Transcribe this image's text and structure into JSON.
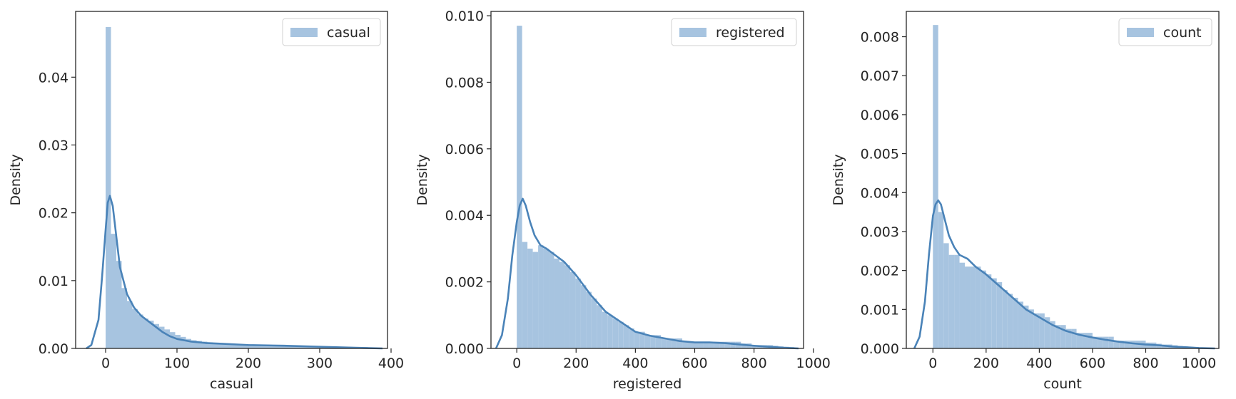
{
  "colors": {
    "bar_fill": "#a7c4e0",
    "kde_line": "#4a83b8",
    "axes": "#262626",
    "legend_border": "#d9d9d9"
  },
  "chart_data": [
    {
      "type": "bar",
      "title": "",
      "xlabel": "casual",
      "ylabel": "Density",
      "xlim": [
        -42,
        395
      ],
      "ylim": [
        0,
        0.0497
      ],
      "xticks": [
        0,
        100,
        200,
        300,
        400
      ],
      "xtick_labels": [
        "0",
        "100",
        "200",
        "300",
        "400"
      ],
      "yticks": [
        0.0,
        0.01,
        0.02,
        0.03,
        0.04
      ],
      "ytick_labels": [
        "0.00",
        "0.01",
        "0.02",
        "0.03",
        "0.04"
      ],
      "grid": false,
      "legend_placement": "top-right",
      "series": [
        {
          "name": "casual",
          "kind": "histogram",
          "bin_edges": [
            0,
            7.5,
            15,
            22.5,
            30,
            37.5,
            45,
            52.5,
            60,
            67.5,
            75,
            82.5,
            90,
            97.5,
            105,
            112.5,
            120,
            127.5,
            135,
            142.5,
            150,
            157.5,
            165,
            172.5,
            180,
            187.5,
            195,
            202.5,
            210,
            217.5,
            225,
            232.5,
            240,
            247.5,
            255,
            262.5,
            270,
            277.5,
            285,
            292.5,
            300,
            307.5,
            315,
            322.5,
            330,
            337.5,
            345,
            352.5,
            360,
            367.5
          ],
          "values": [
            0.0474,
            0.0169,
            0.0129,
            0.0089,
            0.007,
            0.0058,
            0.005,
            0.0044,
            0.0041,
            0.0036,
            0.0032,
            0.0028,
            0.0024,
            0.002,
            0.0017,
            0.0014,
            0.0012,
            0.0011,
            0.001,
            0.0009,
            0.0008,
            0.0008,
            0.0007,
            0.0007,
            0.0006,
            0.0006,
            0.0006,
            0.0005,
            0.0005,
            0.0005,
            0.0005,
            0.0005,
            0.0004,
            0.0004,
            0.0004,
            0.0004,
            0.0004,
            0.0003,
            0.0003,
            0.0003,
            0.0003,
            0.0003,
            0.0003,
            0.0002,
            0.0002,
            0.0002,
            0.0002,
            0.0002,
            0.0002
          ]
        },
        {
          "name": "",
          "kind": "kde",
          "x": [
            -27,
            -20,
            -10,
            -5,
            0,
            3,
            6,
            10,
            15,
            20,
            30,
            40,
            50,
            60,
            70,
            80,
            90,
            100,
            120,
            140,
            160,
            200,
            250,
            300,
            350,
            388
          ],
          "y": [
            0,
            0.0005,
            0.0042,
            0.0105,
            0.0175,
            0.0215,
            0.0225,
            0.021,
            0.0165,
            0.012,
            0.008,
            0.006,
            0.0048,
            0.004,
            0.0032,
            0.0024,
            0.0018,
            0.0014,
            0.001,
            0.0008,
            0.0007,
            0.0005,
            0.0004,
            0.00025,
            0.0001,
            0
          ]
        }
      ]
    },
    {
      "type": "bar",
      "title": "",
      "xlabel": "registered",
      "ylabel": "Density",
      "xlim": [
        -87,
        967
      ],
      "ylim": [
        0,
        0.01013
      ],
      "xticks": [
        0,
        200,
        400,
        600,
        800,
        1000
      ],
      "xtick_labels": [
        "0",
        "200",
        "400",
        "600",
        "800",
        "1000"
      ],
      "yticks": [
        0.0,
        0.002,
        0.004,
        0.006,
        0.008,
        0.01
      ],
      "ytick_labels": [
        "0.000",
        "0.002",
        "0.004",
        "0.006",
        "0.008",
        "0.010"
      ],
      "grid": false,
      "legend_placement": "top-right",
      "series": [
        {
          "name": "registered",
          "kind": "histogram",
          "bin_edges": [
            0,
            18,
            36,
            54,
            72,
            90,
            108,
            126,
            144,
            162,
            180,
            198,
            216,
            234,
            252,
            270,
            288,
            306,
            324,
            342,
            360,
            378,
            396,
            414,
            432,
            450,
            468,
            486,
            504,
            522,
            540,
            558,
            576,
            594,
            612,
            630,
            648,
            666,
            684,
            702,
            720,
            738,
            756,
            774,
            792,
            810,
            828,
            846,
            864,
            882,
            900,
            918,
            936
          ],
          "values": [
            0.0097,
            0.0032,
            0.003,
            0.0029,
            0.0031,
            0.003,
            0.0029,
            0.0027,
            0.0026,
            0.0025,
            0.0023,
            0.0021,
            0.0019,
            0.0017,
            0.0015,
            0.0013,
            0.0011,
            0.001,
            0.0009,
            0.0008,
            0.0007,
            0.0006,
            0.0005,
            0.0005,
            0.0004,
            0.0004,
            0.0004,
            0.0003,
            0.0003,
            0.0003,
            0.0003,
            0.0002,
            0.0002,
            0.0002,
            0.0002,
            0.0002,
            0.0002,
            0.0002,
            0.0002,
            0.0002,
            0.0002,
            0.0002,
            0.00015,
            0.00015,
            0.0001,
            0.0001,
            0.0001,
            0.0001,
            8e-05,
            6e-05,
            5e-05,
            4e-05
          ]
        },
        {
          "name": "",
          "kind": "kde",
          "x": [
            -70,
            -50,
            -30,
            -15,
            0,
            10,
            20,
            30,
            45,
            60,
            80,
            100,
            130,
            160,
            200,
            250,
            300,
            350,
            400,
            450,
            500,
            550,
            600,
            650,
            700,
            750,
            800,
            850,
            900,
            950
          ],
          "y": [
            0,
            0.0004,
            0.0015,
            0.0028,
            0.0038,
            0.0043,
            0.0045,
            0.0043,
            0.0038,
            0.0034,
            0.0031,
            0.003,
            0.0028,
            0.0026,
            0.0022,
            0.0016,
            0.0011,
            0.0008,
            0.0005,
            0.00038,
            0.0003,
            0.00022,
            0.00018,
            0.00018,
            0.00016,
            0.00012,
            8e-05,
            5e-05,
            2e-05,
            0
          ]
        }
      ]
    },
    {
      "type": "bar",
      "title": "",
      "xlabel": "count",
      "ylabel": "Density",
      "xlim": [
        -100,
        1075
      ],
      "ylim": [
        0,
        0.00865
      ],
      "xticks": [
        0,
        200,
        400,
        600,
        800,
        1000
      ],
      "xtick_labels": [
        "0",
        "200",
        "400",
        "600",
        "800",
        "1000"
      ],
      "yticks": [
        0.0,
        0.001,
        0.002,
        0.003,
        0.004,
        0.005,
        0.006,
        0.007,
        0.008
      ],
      "ytick_labels": [
        "0.000",
        "0.001",
        "0.002",
        "0.003",
        "0.004",
        "0.005",
        "0.006",
        "0.007",
        "0.008"
      ],
      "grid": false,
      "legend_placement": "top-right",
      "series": [
        {
          "name": "count",
          "kind": "histogram",
          "bin_edges": [
            0,
            20,
            40,
            60,
            80,
            100,
            120,
            140,
            160,
            180,
            200,
            220,
            240,
            260,
            280,
            300,
            320,
            340,
            360,
            380,
            400,
            420,
            440,
            460,
            480,
            500,
            520,
            540,
            560,
            580,
            600,
            620,
            640,
            660,
            680,
            700,
            720,
            740,
            760,
            780,
            800,
            820,
            840,
            860,
            880,
            900,
            920,
            940,
            960,
            980,
            1000,
            1020,
            1040
          ],
          "values": [
            0.0083,
            0.0035,
            0.0027,
            0.0024,
            0.0024,
            0.0022,
            0.0021,
            0.0021,
            0.0021,
            0.002,
            0.0019,
            0.0018,
            0.0017,
            0.0015,
            0.0014,
            0.0013,
            0.0012,
            0.0011,
            0.001,
            0.0009,
            0.0009,
            0.0008,
            0.0007,
            0.0006,
            0.0006,
            0.0005,
            0.0005,
            0.0004,
            0.0004,
            0.0004,
            0.0003,
            0.0003,
            0.0003,
            0.0003,
            0.0002,
            0.0002,
            0.0002,
            0.0002,
            0.0002,
            0.0002,
            0.00015,
            0.00015,
            0.00012,
            0.0001,
            0.0001,
            8e-05,
            6e-05,
            5e-05,
            4e-05,
            3e-05,
            2e-05,
            2e-05
          ]
        },
        {
          "name": "",
          "kind": "kde",
          "x": [
            -70,
            -50,
            -30,
            -15,
            0,
            10,
            20,
            30,
            45,
            60,
            80,
            100,
            130,
            160,
            200,
            250,
            300,
            350,
            400,
            450,
            500,
            550,
            600,
            650,
            700,
            750,
            800,
            850,
            900,
            950,
            1000,
            1060
          ],
          "y": [
            0,
            0.0003,
            0.0012,
            0.0024,
            0.0034,
            0.0037,
            0.0038,
            0.0037,
            0.0033,
            0.0029,
            0.0026,
            0.0024,
            0.0023,
            0.0021,
            0.0019,
            0.0016,
            0.0013,
            0.001,
            0.0008,
            0.0006,
            0.00045,
            0.00035,
            0.00028,
            0.00022,
            0.00017,
            0.00013,
            0.0001,
            8e-05,
            5e-05,
            3e-05,
            1e-05,
            0
          ]
        }
      ]
    }
  ]
}
